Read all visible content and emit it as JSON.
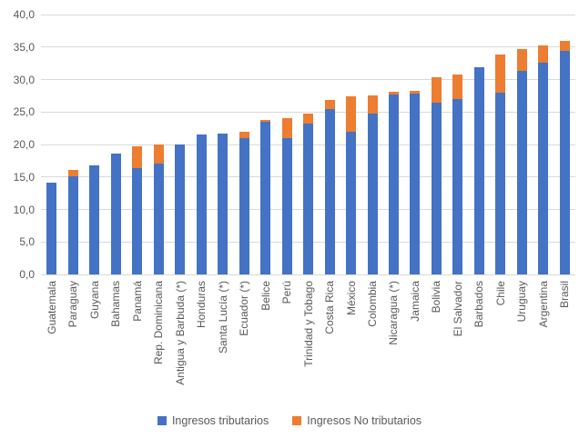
{
  "chart_data": {
    "type": "bar",
    "stacked": true,
    "title": "",
    "xlabel": "",
    "ylabel": "",
    "ylim": [
      0,
      40
    ],
    "ytick_step": 5,
    "ytick_labels": [
      "0,0",
      "5,0",
      "10,0",
      "15,0",
      "20,0",
      "25,0",
      "30,0",
      "35,0",
      "40,0"
    ],
    "decimal_separator": ",",
    "grid": true,
    "legend_position": "bottom",
    "categories": [
      "Guatemala",
      "Paraguay",
      "Guyana",
      "Bahamas",
      "Panamá",
      "Rep. Dominicana",
      "Antigua y Barbuda (*)",
      "Honduras",
      "Santa Lucía (*)",
      "Ecuador (*)",
      "Belice",
      "Perú",
      "Trinidad y Tobago",
      "Costa Rica",
      "México",
      "Colombia",
      "Nicaragua (*)",
      "Jamaica",
      "Bolivia",
      "El Salvador",
      "Barbados",
      "Chile",
      "Uruguay",
      "Argentina",
      "Brasil"
    ],
    "series": [
      {
        "name": "Ingresos tributarios",
        "color": "#4472C4",
        "values": [
          14.1,
          15.1,
          16.8,
          18.6,
          16.4,
          17.1,
          20.0,
          21.6,
          21.7,
          21.0,
          23.5,
          21.0,
          23.2,
          25.5,
          21.9,
          24.7,
          27.7,
          27.9,
          26.5,
          27.0,
          31.9,
          28.0,
          31.4,
          32.6,
          34.4
        ]
      },
      {
        "name": "Ingresos No tributarios",
        "color": "#ED7D31",
        "values": [
          0.0,
          1.0,
          0.0,
          0.0,
          3.3,
          2.9,
          0.0,
          0.0,
          0.0,
          1.0,
          0.3,
          3.0,
          1.5,
          1.3,
          5.5,
          2.8,
          0.4,
          0.3,
          3.8,
          3.8,
          0.0,
          5.9,
          3.3,
          2.7,
          1.5
        ]
      }
    ]
  },
  "colors": {
    "background": "#FFFFFF",
    "gridline": "#D9D9D9",
    "axis_text": "#595959",
    "series_tributarios": "#4472C4",
    "series_no_tributarios": "#ED7D31"
  }
}
